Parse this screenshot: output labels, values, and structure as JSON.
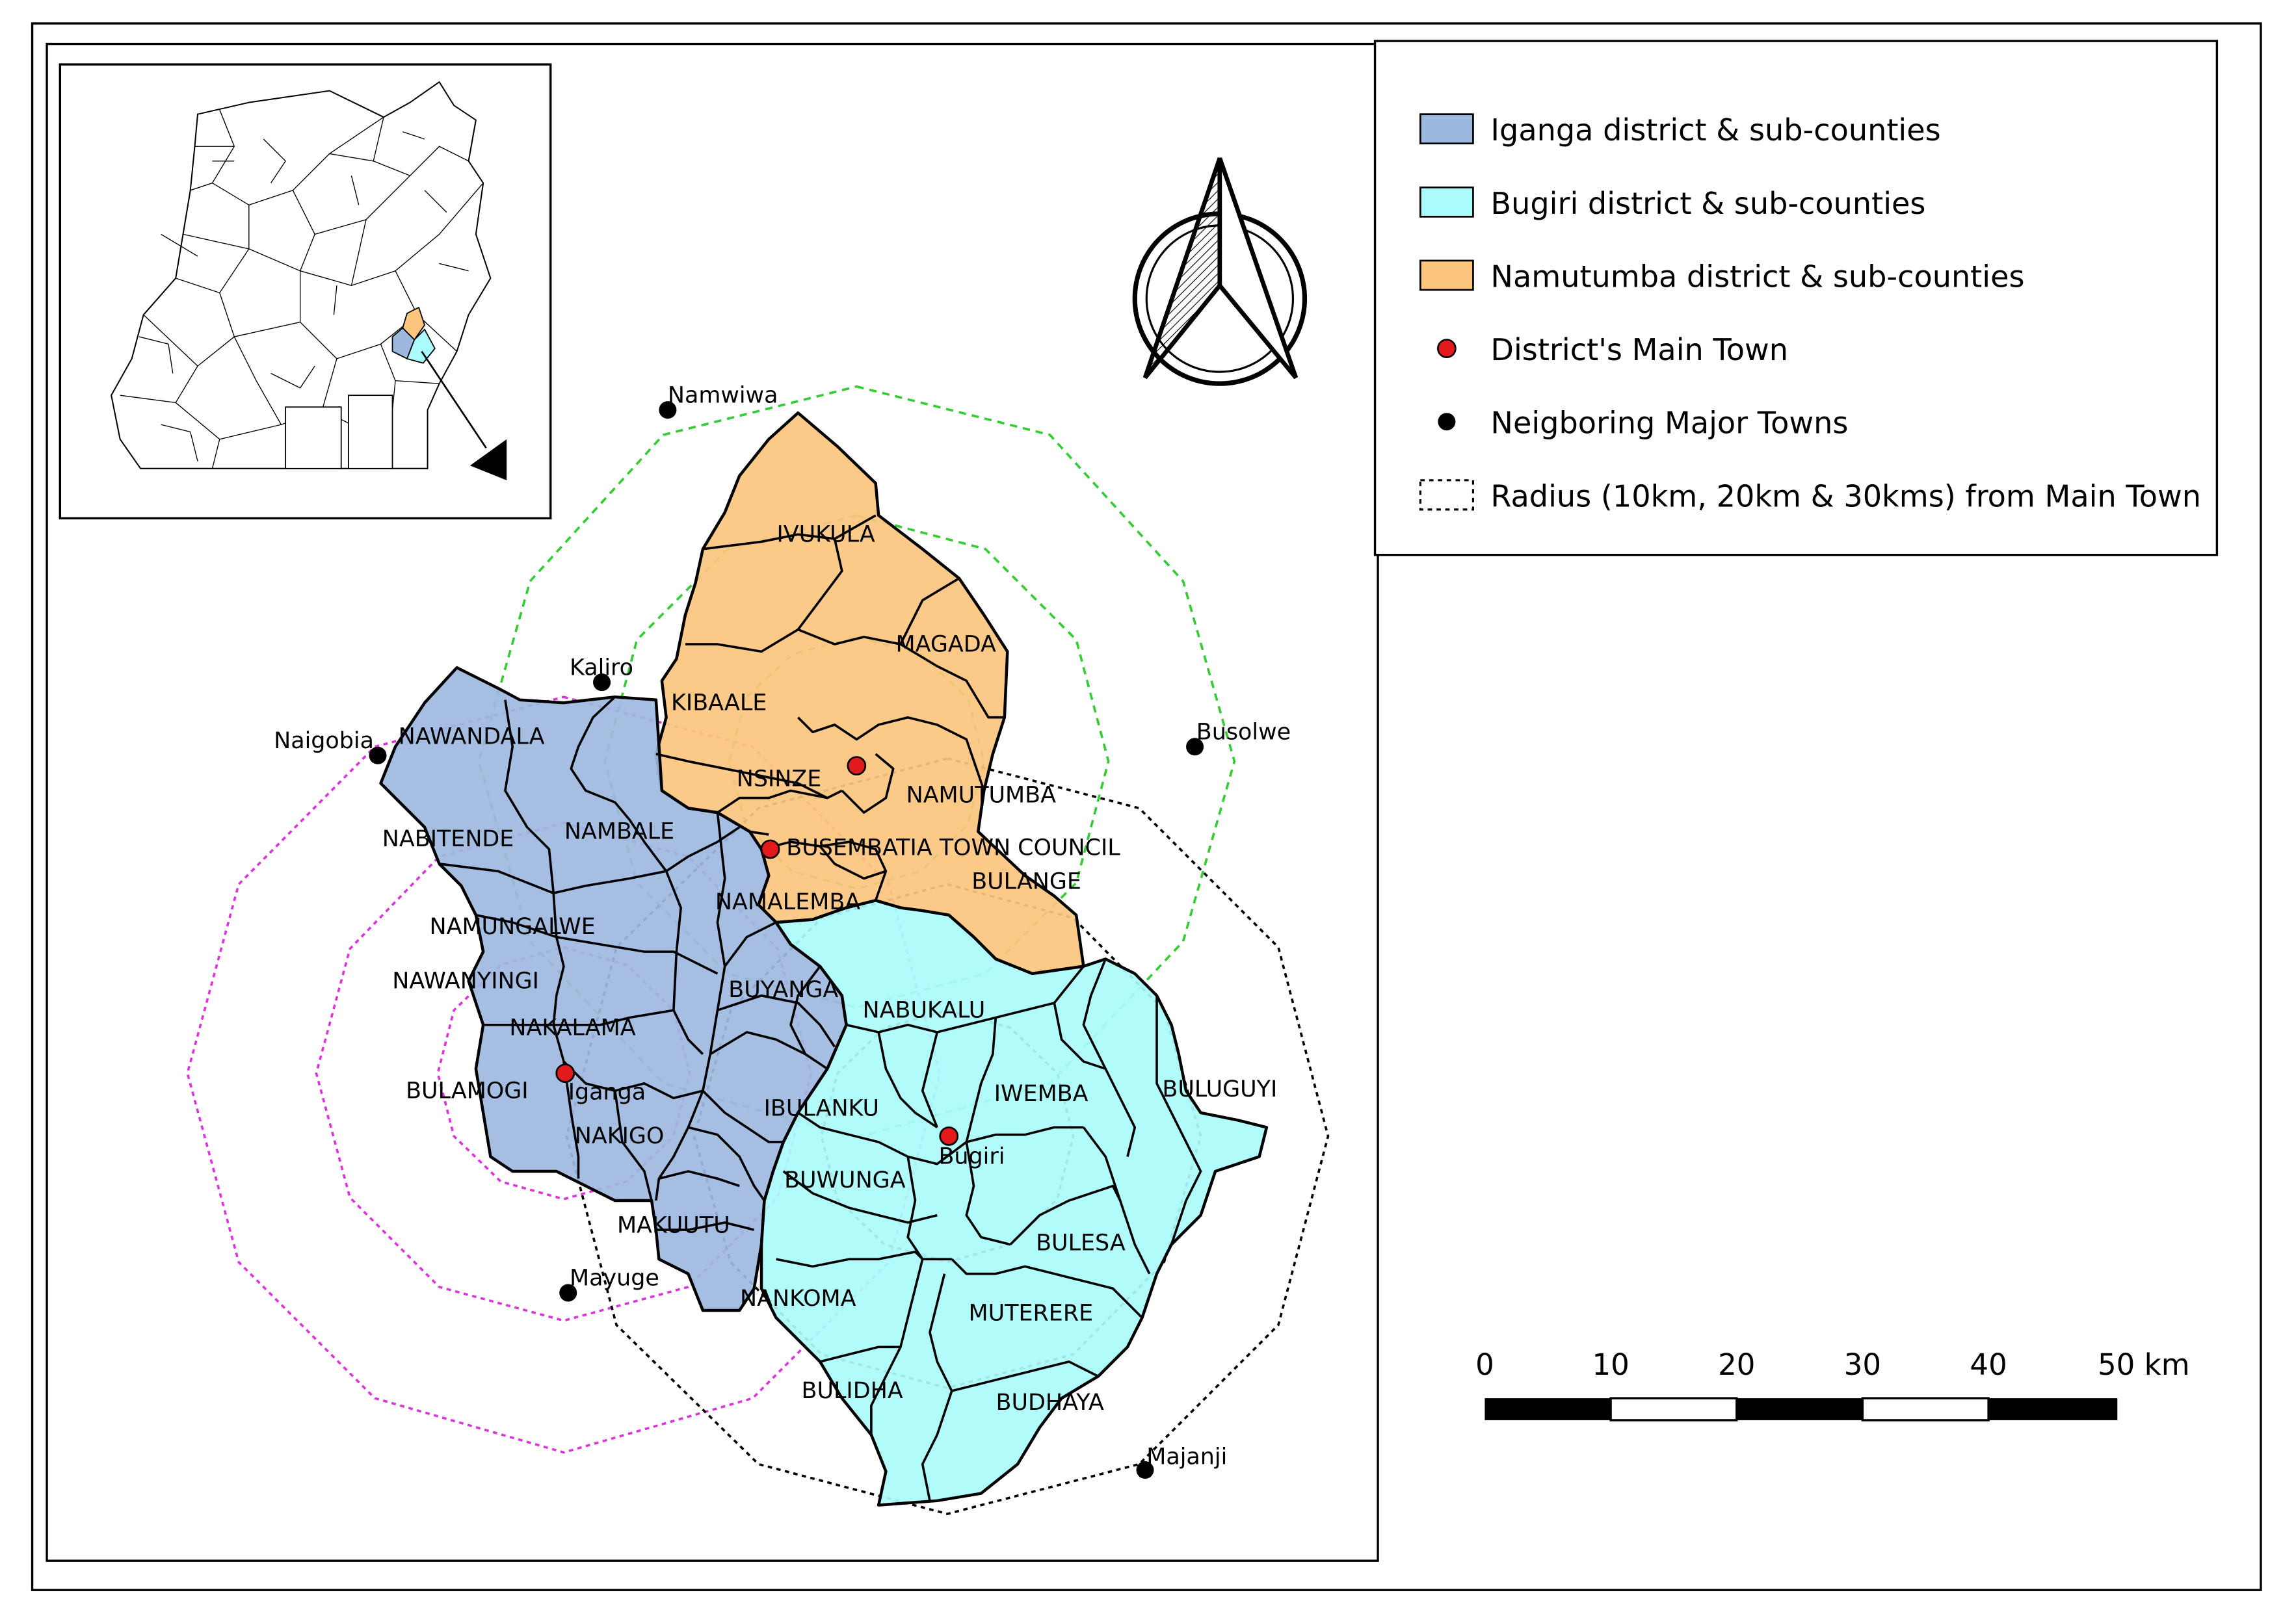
{
  "legend": {
    "items": [
      {
        "label": "Iganga district & sub-counties",
        "kind": "swatch",
        "fill": "#9db8de"
      },
      {
        "label": "Bugiri district & sub-counties",
        "kind": "swatch",
        "fill": "#aafbfb"
      },
      {
        "label": "Namutumba district & sub-counties",
        "kind": "swatch",
        "fill": "#fcc57e"
      },
      {
        "label": "District's Main Town",
        "kind": "dot",
        "fill": "#e31a1c"
      },
      {
        "label": "Neigboring Major Towns",
        "kind": "dot",
        "fill": "#000000"
      },
      {
        "label": "Radius (10km, 20km & 30kms) from Main Town",
        "kind": "dashed"
      }
    ]
  },
  "scale_bar": {
    "ticks": [
      "0",
      "10",
      "20",
      "30",
      "40",
      "50 km"
    ]
  },
  "subcounties": {
    "iganga": [
      "NAWANDALA",
      "NABITENDE",
      "NAMBALE",
      "NAMUNGALWE",
      "NAWANYINGI",
      "NAKALAMA",
      "BULAMOGI",
      "NAKIGO",
      "MAKUUTU",
      "NAMALEMBA",
      "BUYANGA",
      "IBULANKU"
    ],
    "namutumba": [
      "IVUKULA",
      "MAGADA",
      "KIBAALE",
      "NSINZE",
      "NAMUTUMBA",
      "BUSEMBATIA TOWN COUNCIL",
      "BULANGE"
    ],
    "bugiri": [
      "NABUKALU",
      "IWEMBA",
      "BULUGUYI",
      "BUWUNGA",
      "BULESA",
      "NANKOMA",
      "MUTERERE",
      "BULIDHA",
      "BUDHAYA"
    ]
  },
  "main_towns": [
    "Iganga",
    "Bugiri"
  ],
  "neighboring_towns": [
    "Namwiwa",
    "Kaliro",
    "Naigobia",
    "Busolwe",
    "Mayuge",
    "Majanji"
  ],
  "colors": {
    "iganga": "#9db8de",
    "bugiri": "#aafbfb",
    "namutumba": "#fcc57e",
    "radius_green": "#33cc33",
    "radius_magenta": "#dd33dd",
    "radius_black": "#000000",
    "main_town": "#e31a1c",
    "major_town": "#000000"
  }
}
